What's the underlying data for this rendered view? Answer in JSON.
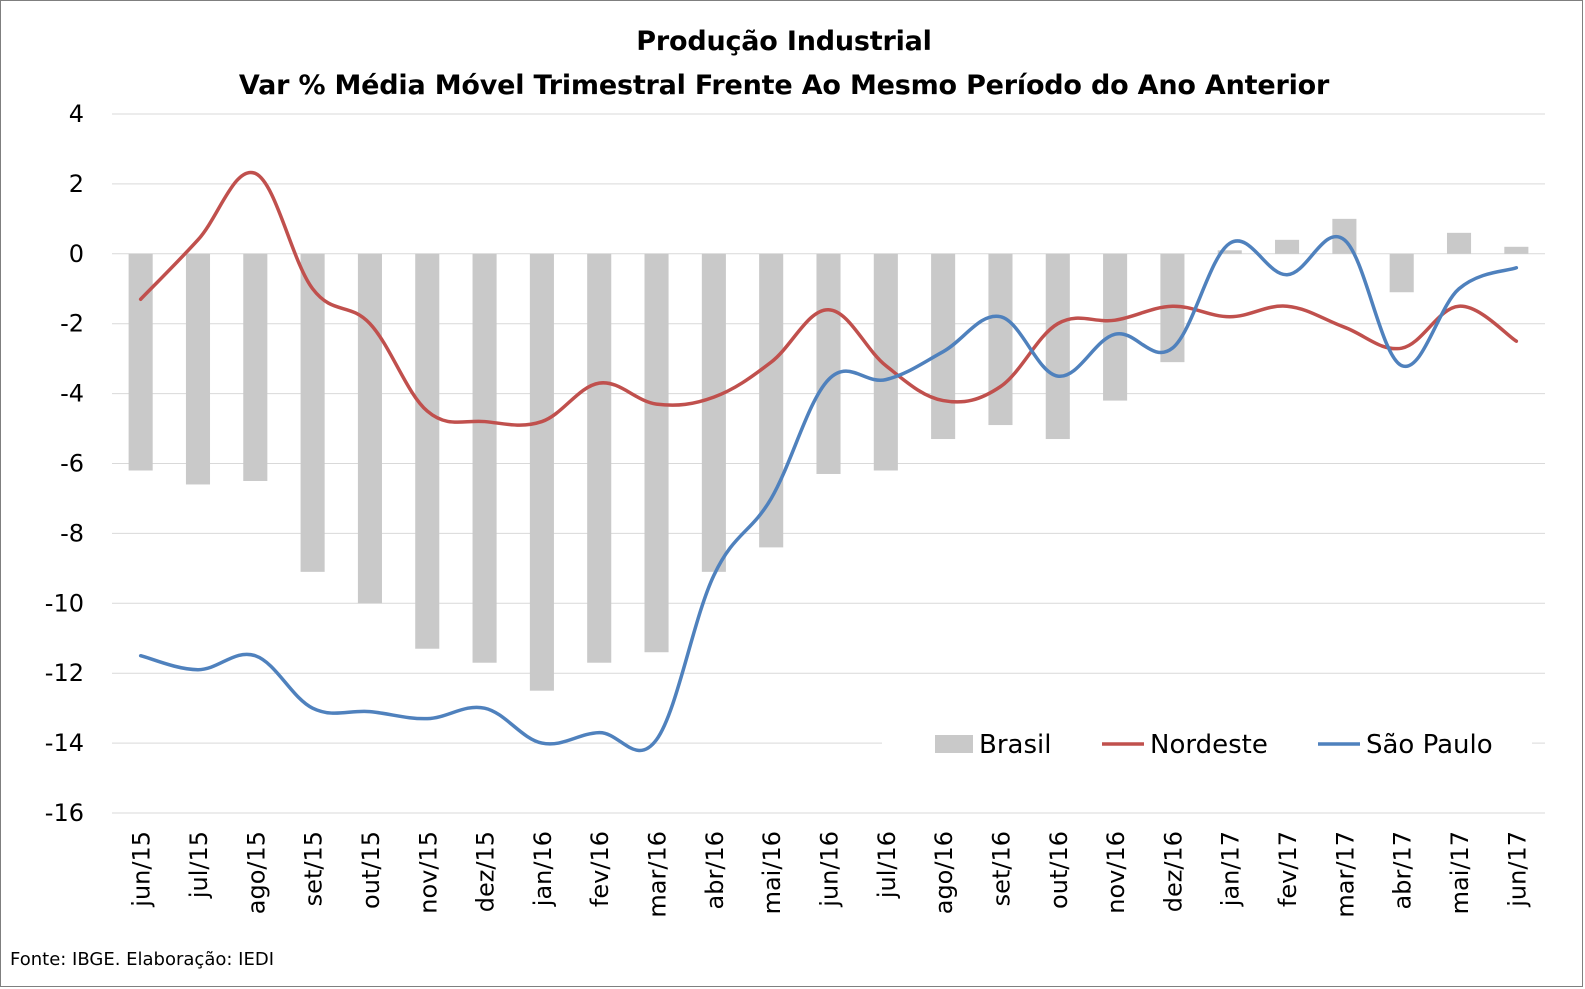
{
  "chart_data": {
    "type": "bar+line",
    "title": "Produção Industrial",
    "subtitle": "Var % Média Móvel Trimestral Frente Ao Mesmo Período do Ano Anterior",
    "categories": [
      "jun/15",
      "jul/15",
      "ago/15",
      "set/15",
      "out/15",
      "nov/15",
      "dez/15",
      "jan/16",
      "fev/16",
      "mar/16",
      "abr/16",
      "mai/16",
      "jun/16",
      "jul/16",
      "ago/16",
      "set/16",
      "out/16",
      "nov/16",
      "dez/16",
      "jan/17",
      "fev/17",
      "mar/17",
      "abr/17",
      "mai/17",
      "jun/17"
    ],
    "ylim": [
      -16,
      4
    ],
    "yticks": [
      4,
      2,
      0,
      -2,
      -4,
      -6,
      -8,
      -10,
      -12,
      -14,
      -16
    ],
    "grid": true,
    "legend_position": "bottom-right",
    "series": [
      {
        "name": "Brasil",
        "kind": "bar",
        "color": "#c9c9c9",
        "values": [
          -6.2,
          -6.6,
          -6.5,
          -9.1,
          -10.0,
          -11.3,
          -11.7,
          -12.5,
          -11.7,
          -11.4,
          -9.1,
          -8.4,
          -6.3,
          -6.2,
          -5.3,
          -4.9,
          -5.3,
          -4.2,
          -3.1,
          0.1,
          0.4,
          1.0,
          -1.1,
          0.6,
          0.2
        ]
      },
      {
        "name": "Nordeste",
        "kind": "line",
        "color": "#c0504d",
        "values": [
          -1.3,
          0.4,
          2.3,
          -1.0,
          -2.0,
          -4.5,
          -4.8,
          -4.8,
          -3.7,
          -4.3,
          -4.1,
          -3.1,
          -1.6,
          -3.2,
          -4.2,
          -3.8,
          -2.0,
          -1.9,
          -1.5,
          -1.8,
          -1.5,
          -2.1,
          -2.7,
          -1.5,
          -2.5
        ]
      },
      {
        "name": "São Paulo",
        "kind": "line",
        "color": "#4f81bd",
        "values": [
          -11.5,
          -11.9,
          -11.5,
          -13.0,
          -13.1,
          -13.3,
          -13.0,
          -14.0,
          -13.7,
          -13.9,
          -9.2,
          -7.0,
          -3.6,
          -3.6,
          -2.8,
          -1.8,
          -3.5,
          -2.3,
          -2.7,
          0.3,
          -0.6,
          0.4,
          -3.2,
          -1.0,
          -0.4
        ]
      }
    ],
    "source": "Fonte: IBGE. Elaboração: IEDI"
  }
}
